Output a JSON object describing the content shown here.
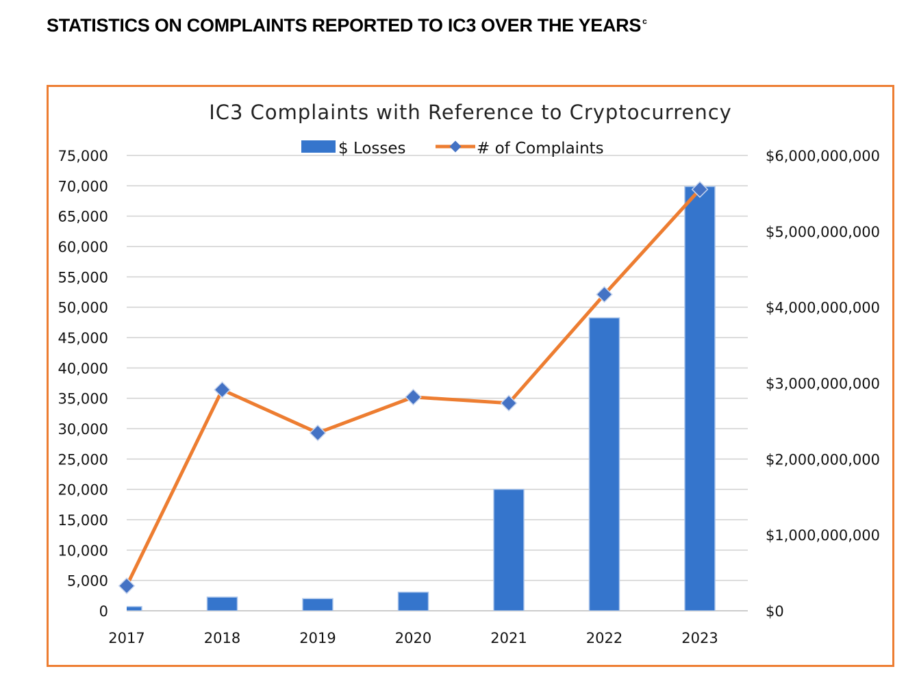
{
  "heading": {
    "title": "STATISTICS ON COMPLAINTS REPORTED TO IC3 OVER THE YEARS",
    "footnote": "c"
  },
  "chart_data": {
    "type": "bar+line",
    "title": "IC3 Complaints with Reference to Cryptocurrency",
    "categories": [
      "2017",
      "2018",
      "2019",
      "2020",
      "2021",
      "2022",
      "2023"
    ],
    "series": [
      {
        "name": "$ Losses",
        "type": "bar",
        "axis": "right",
        "color": "#3575CC",
        "values": [
          55000000,
          180000000,
          160000000,
          245000000,
          1600000000,
          3860000000,
          5590000000
        ]
      },
      {
        "name": "# of Complaints",
        "type": "line",
        "axis": "left",
        "color": "#ED7D31",
        "marker_color": "#4472C4",
        "values": [
          4100,
          36400,
          29300,
          35200,
          34200,
          52100,
          69400
        ]
      }
    ],
    "left_axis": {
      "ylim": [
        0,
        75000
      ],
      "ticks": [
        "0",
        "5,000",
        "10,000",
        "15,000",
        "20,000",
        "25,000",
        "30,000",
        "35,000",
        "40,000",
        "45,000",
        "50,000",
        "55,000",
        "60,000",
        "65,000",
        "70,000",
        "75,000"
      ]
    },
    "right_axis": {
      "ylim": [
        0,
        6000000000
      ],
      "ticks": [
        "$0",
        "$1,000,000,000",
        "$2,000,000,000",
        "$3,000,000,000",
        "$4,000,000,000",
        "$5,000,000,000",
        "$6,000,000,000"
      ]
    },
    "grid": true,
    "legend": "top-center"
  }
}
